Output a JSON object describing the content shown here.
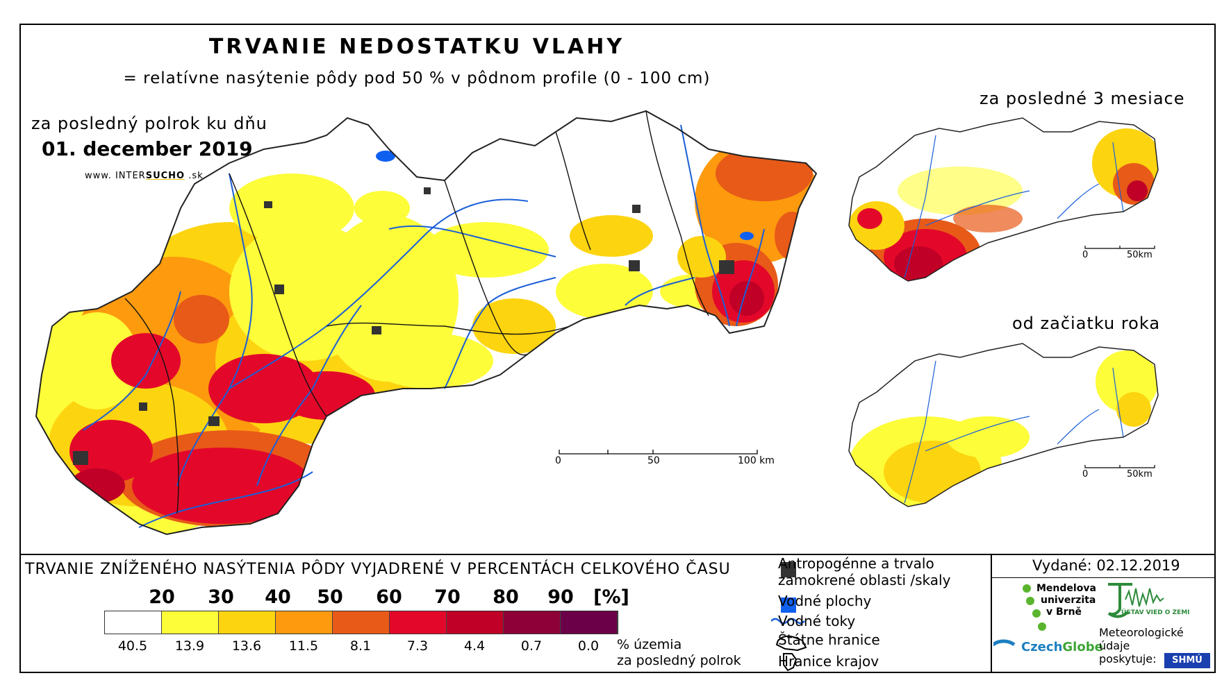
{
  "header": {
    "title": "TRVANIE NEDOSTATKU VLAHY",
    "subtitle": "= relatívne nasýtenie pôdy pod 50 % v pôdnom profile (0 - 100 cm)"
  },
  "main_map": {
    "period": "za posledný polrok ku dňu",
    "date": "01. december 2019",
    "website_prefix": "www. INTER",
    "website_brand": "SUCHO",
    "website_suffix": " .sk",
    "scale": {
      "labels": [
        "0",
        "50",
        "100 km"
      ]
    }
  },
  "inset_maps": [
    {
      "title": "za posledné 3 mesiace",
      "scale_labels": [
        "0",
        "50km"
      ]
    },
    {
      "title": "od začiatku roka",
      "scale_labels": [
        "0",
        "50km"
      ]
    }
  ],
  "legend": {
    "title": "TRVANIE ZNÍŽENÉHO NASÝTENIA PÔDY VYJADRENÉ V PERCENTÁCH CELKOVÉHO ČASU",
    "class_bounds": [
      "20",
      "30",
      "40",
      "50",
      "60",
      "70",
      "80",
      "90",
      "[%]"
    ],
    "colors": [
      "#ffffff",
      "#fdfd3a",
      "#fdd410",
      "#fd9a0e",
      "#e85a18",
      "#e3082a",
      "#c00026",
      "#8e0038",
      "#6b0048"
    ],
    "area_percent": [
      "40.5",
      "13.9",
      "13.6",
      "11.5",
      "8.1",
      "7.3",
      "4.4",
      "0.7",
      "0.0"
    ],
    "area_label_line1": "% územia",
    "area_label_line2": "za posledný polrok"
  },
  "symbol_key": [
    {
      "label_line1": "Antropogénne a trvalo",
      "label_line2": "zamokrené oblasti /skaly",
      "color": "#333333",
      "icon": "dark-square-icon"
    },
    {
      "label_line1": "Vodné plochy",
      "label_line2": "",
      "color": "#1060f0",
      "icon": "blue-square-icon"
    },
    {
      "label_line1": "Vodné toky",
      "label_line2": "",
      "color": "#1a5fd8",
      "icon": "wavy-line-icon"
    },
    {
      "label_line1": "Štátne hranice",
      "label_line2": "",
      "color": "#000000",
      "icon": "border-outline-icon"
    },
    {
      "label_line1": "Hranice krajov",
      "label_line2": "",
      "color": "#000000",
      "icon": "region-outline-icon"
    }
  ],
  "issued": {
    "label": "Vydané: 02.12.2019"
  },
  "logos": {
    "mendel_line1": "Mendelova",
    "mendel_line2": "univerzita",
    "mendel_line3": "v Brně",
    "czechglobe_a": "Czech",
    "czechglobe_b": "Globe",
    "ustav": "ÚSTAV VIED O ZEMI",
    "met_line1": "Meteorologické",
    "met_line2": "údaje",
    "met_line3": "poskytuje:",
    "shmu": "SHMÚ"
  }
}
